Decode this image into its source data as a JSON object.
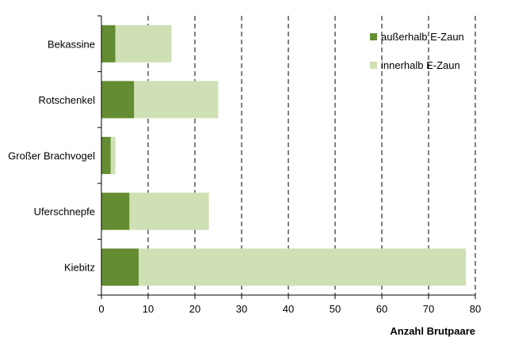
{
  "chart_data": {
    "type": "bar",
    "orientation": "horizontal",
    "stacked": true,
    "categories": [
      "Bekassine",
      "Rotschenkel",
      "Großer Brachvogel",
      "Uferschnepfe",
      "Kiebitz"
    ],
    "series": [
      {
        "name": "außerhalb E-Zaun",
        "values": [
          3,
          7,
          2,
          6,
          8
        ],
        "color": "#648c32"
      },
      {
        "name": "innerhalb E-Zaun",
        "values": [
          12,
          18,
          1,
          17,
          70
        ],
        "color": "#cfe0b5"
      }
    ],
    "xlabel": "Anzahl Brutpaare",
    "xlim": [
      0,
      80
    ],
    "xticks": [
      0,
      10,
      20,
      30,
      40,
      50,
      60,
      70,
      80
    ],
    "grid": "vertical-dashed",
    "legend": "top-right"
  }
}
